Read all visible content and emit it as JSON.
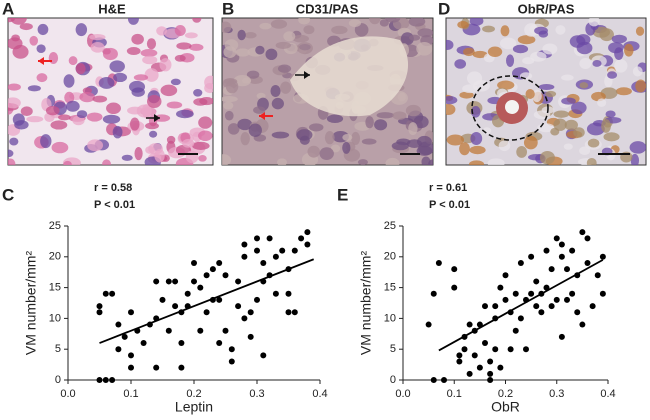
{
  "panels": [
    {
      "label": "A",
      "title": "H&E"
    },
    {
      "label": "B",
      "title": "CD31/PAS"
    },
    {
      "label": "D",
      "title": "ObR/PAS"
    }
  ],
  "chart_data": [
    {
      "type": "scatter",
      "panel": "C",
      "annotations": [
        "r = 0.58",
        "P < 0.01"
      ],
      "x_label": "Leptin",
      "y_label": "VM number/mm²",
      "color": "#000000",
      "x": [
        0.05,
        0.06,
        0.07,
        0.05,
        0.05,
        0.06,
        0.07,
        0.08,
        0.08,
        0.09,
        0.1,
        0.1,
        0.1,
        0.11,
        0.12,
        0.13,
        0.14,
        0.14,
        0.15,
        0.16,
        0.16,
        0.17,
        0.17,
        0.18,
        0.18,
        0.19,
        0.19,
        0.2,
        0.2,
        0.21,
        0.21,
        0.22,
        0.22,
        0.23,
        0.23,
        0.24,
        0.24,
        0.25,
        0.25,
        0.26,
        0.26,
        0.27,
        0.27,
        0.28,
        0.28,
        0.28,
        0.29,
        0.29,
        0.3,
        0.3,
        0.3,
        0.31,
        0.31,
        0.31,
        0.32,
        0.32,
        0.33,
        0.33,
        0.34,
        0.35,
        0.35,
        0.35,
        0.36,
        0.36,
        0.37,
        0.38,
        0.38,
        0.18,
        0.14,
        0.24
      ],
      "values": [
        0,
        0,
        0,
        11,
        12,
        14,
        14,
        9,
        5,
        7,
        11,
        2,
        4,
        8,
        6,
        9,
        10,
        16,
        13,
        8,
        16,
        12,
        16,
        6,
        11,
        12,
        14,
        16,
        19,
        8,
        15,
        11,
        17,
        13,
        18,
        19,
        13,
        8,
        17,
        3,
        5,
        12,
        16,
        10,
        20,
        22,
        7,
        11,
        13,
        21,
        23,
        4,
        16,
        19,
        17,
        23,
        14,
        20,
        21,
        11,
        18,
        14,
        11,
        21,
        23,
        22,
        24,
        2,
        2,
        6
      ],
      "fit_x": [
        0.05,
        0.39
      ],
      "fit_y": [
        6,
        19.6
      ],
      "xlim": [
        0,
        0.4
      ],
      "xticks": [
        {
          "value": 0,
          "label": "0.0"
        },
        0.1,
        0.2,
        0.3,
        0.4
      ],
      "ylim": [
        0,
        25
      ],
      "yticks": [
        0,
        5,
        10,
        15,
        20,
        25
      ]
    },
    {
      "type": "scatter",
      "panel": "E",
      "annotations": [
        "r = 0.61",
        "P < 0.01"
      ],
      "x_label": "ObR",
      "y_label": "VM number/mm²",
      "color": "#000000",
      "x": [
        0.05,
        0.06,
        0.06,
        0.07,
        0.08,
        0.1,
        0.1,
        0.11,
        0.11,
        0.12,
        0.12,
        0.13,
        0.13,
        0.14,
        0.14,
        0.15,
        0.15,
        0.16,
        0.16,
        0.17,
        0.17,
        0.17,
        0.18,
        0.18,
        0.18,
        0.19,
        0.19,
        0.2,
        0.2,
        0.21,
        0.21,
        0.22,
        0.22,
        0.23,
        0.23,
        0.24,
        0.24,
        0.25,
        0.25,
        0.26,
        0.26,
        0.27,
        0.27,
        0.28,
        0.28,
        0.29,
        0.29,
        0.3,
        0.3,
        0.31,
        0.31,
        0.31,
        0.32,
        0.32,
        0.33,
        0.33,
        0.34,
        0.34,
        0.35,
        0.35,
        0.36,
        0.36,
        0.37,
        0.38,
        0.39,
        0.39
      ],
      "values": [
        9,
        14,
        0,
        19,
        0,
        18,
        15,
        4,
        3,
        7,
        5,
        9,
        1,
        4,
        8,
        2,
        9,
        6,
        12,
        3,
        0,
        1,
        12,
        10,
        5,
        2,
        15,
        13,
        17,
        11,
        5,
        8,
        14,
        10,
        19,
        5,
        13,
        14,
        20,
        12,
        16,
        11,
        14,
        15,
        21,
        12,
        18,
        13,
        23,
        7,
        20,
        22,
        13,
        18,
        14,
        21,
        17,
        11,
        24,
        9,
        19,
        23,
        12,
        17,
        20,
        14
      ],
      "fit_x": [
        0.07,
        0.39
      ],
      "fit_y": [
        4.8,
        19.5
      ],
      "xlim": [
        0,
        0.4
      ],
      "xticks": [
        {
          "value": 0,
          "label": "0.0"
        },
        0.1,
        0.2,
        0.3,
        0.4
      ],
      "ylim": [
        0,
        25
      ],
      "yticks": [
        0,
        5,
        10,
        15,
        20,
        25
      ]
    }
  ]
}
